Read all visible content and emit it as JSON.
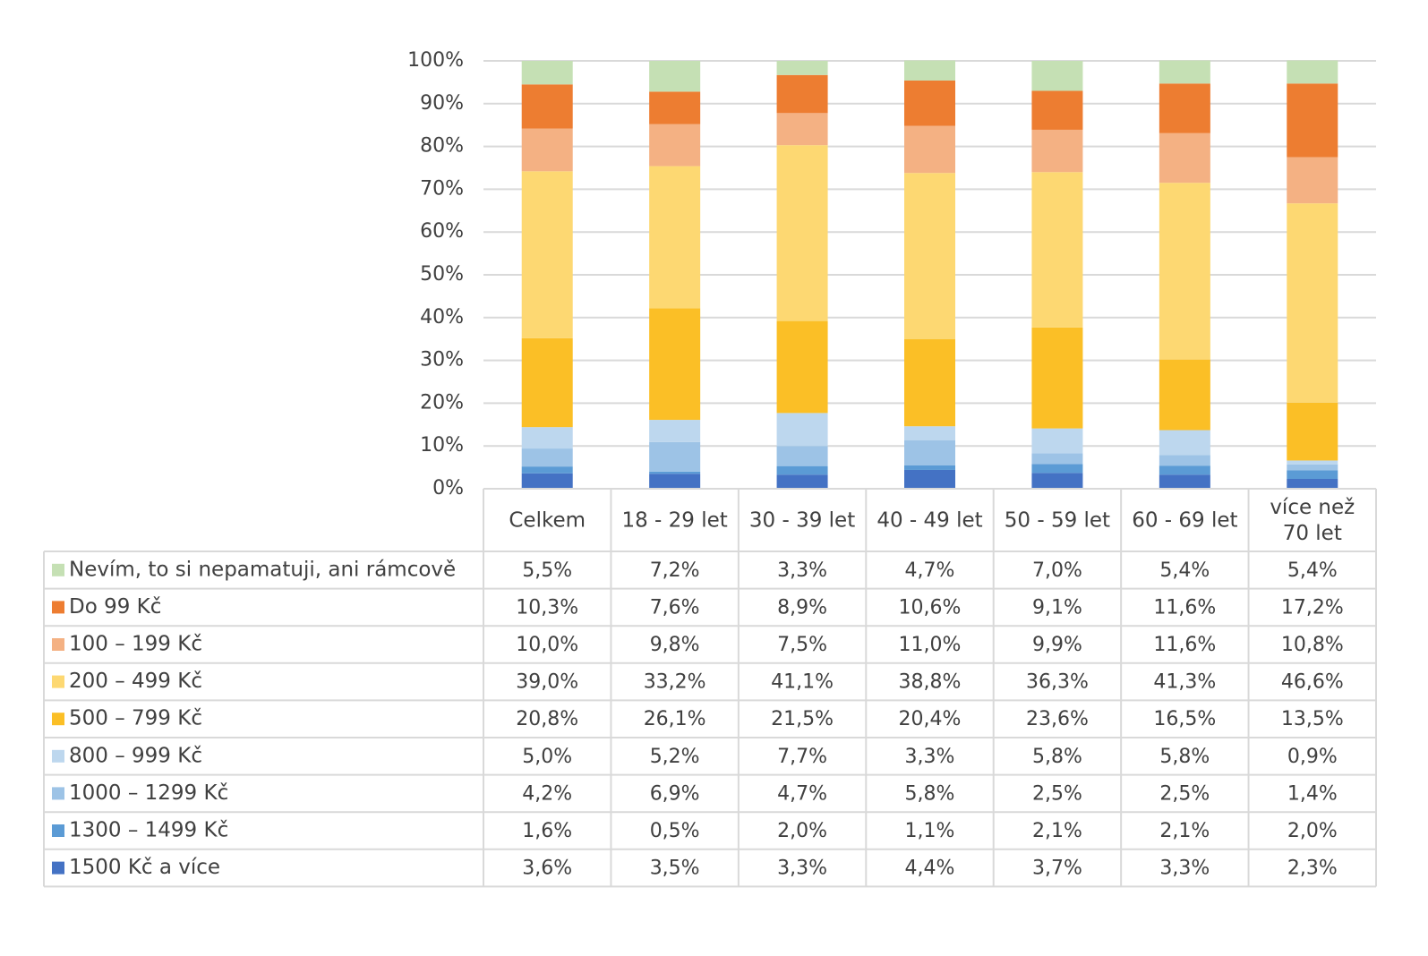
{
  "chart_data": {
    "type": "bar",
    "stacked": true,
    "percent": true,
    "categories": [
      "Celkem",
      "18 - 29 let",
      "30 - 39 let",
      "40 - 49 let",
      "50 - 59 let",
      "60 - 69 let",
      "více než 70 let"
    ],
    "category_lines": [
      [
        "Celkem"
      ],
      [
        "18 - 29 let"
      ],
      [
        "30 - 39 let"
      ],
      [
        "40 - 49 let"
      ],
      [
        "50 - 59 let"
      ],
      [
        "60 - 69 let"
      ],
      [
        "více než",
        "70 let"
      ]
    ],
    "yticks": [
      "0%",
      "10%",
      "20%",
      "30%",
      "40%",
      "50%",
      "60%",
      "70%",
      "80%",
      "90%",
      "100%"
    ],
    "ylim": [
      0,
      100
    ],
    "grid": true,
    "legend": "data table below chart",
    "series": [
      {
        "name": "1500 Kč a více",
        "color": "#4472C4",
        "values": [
          3.6,
          3.5,
          3.3,
          4.4,
          3.7,
          3.3,
          2.3
        ],
        "labels": [
          "3,6%",
          "3,5%",
          "3,3%",
          "4,4%",
          "3,7%",
          "3,3%",
          "2,3%"
        ]
      },
      {
        "name": "1300 – 1499 Kč",
        "color": "#5B9BD5",
        "values": [
          1.6,
          0.5,
          2.0,
          1.1,
          2.1,
          2.1,
          2.0
        ],
        "labels": [
          "1,6%",
          "0,5%",
          "2,0%",
          "1,1%",
          "2,1%",
          "2,1%",
          "2,0%"
        ]
      },
      {
        "name": "1000 – 1299 Kč",
        "color": "#9DC3E6",
        "values": [
          4.2,
          6.9,
          4.7,
          5.8,
          2.5,
          2.5,
          1.4
        ],
        "labels": [
          "4,2%",
          "6,9%",
          "4,7%",
          "5,8%",
          "2,5%",
          "2,5%",
          "1,4%"
        ]
      },
      {
        "name": "800 – 999 Kč",
        "color": "#BDD7EE",
        "values": [
          5.0,
          5.2,
          7.7,
          3.3,
          5.8,
          5.8,
          0.9
        ],
        "labels": [
          "5,0%",
          "5,2%",
          "7,7%",
          "3,3%",
          "5,8%",
          "5,8%",
          "0,9%"
        ]
      },
      {
        "name": "500 – 799 Kč",
        "color": "#FBBF26",
        "values": [
          20.8,
          26.1,
          21.5,
          20.4,
          23.6,
          16.5,
          13.5
        ],
        "labels": [
          "20,8%",
          "26,1%",
          "21,5%",
          "20,4%",
          "23,6%",
          "16,5%",
          "13,5%"
        ]
      },
      {
        "name": "200 – 499 Kč",
        "color": "#FDD872",
        "values": [
          39.0,
          33.2,
          41.1,
          38.8,
          36.3,
          41.3,
          46.6
        ],
        "labels": [
          "39,0%",
          "33,2%",
          "41,1%",
          "38,8%",
          "36,3%",
          "41,3%",
          "46,6%"
        ]
      },
      {
        "name": "100 – 199 Kč",
        "color": "#F4B183",
        "values": [
          10.0,
          9.8,
          7.5,
          11.0,
          9.9,
          11.6,
          10.8
        ],
        "labels": [
          "10,0%",
          "9,8%",
          "7,5%",
          "11,0%",
          "9,9%",
          "11,6%",
          "10,8%"
        ]
      },
      {
        "name": "Do 99 Kč",
        "color": "#ED7D31",
        "values": [
          10.3,
          7.6,
          8.9,
          10.6,
          9.1,
          11.6,
          17.2
        ],
        "labels": [
          "10,3%",
          "7,6%",
          "8,9%",
          "10,6%",
          "9,1%",
          "11,6%",
          "17,2%"
        ]
      },
      {
        "name": "Nevím, to si nepamatuji, ani rámcově",
        "color": "#C5E0B4",
        "values": [
          5.5,
          7.2,
          3.3,
          4.7,
          7.0,
          5.4,
          5.4
        ],
        "labels": [
          "5,5%",
          "7,2%",
          "3,3%",
          "4,7%",
          "7,0%",
          "5,4%",
          "5,4%"
        ]
      }
    ]
  }
}
